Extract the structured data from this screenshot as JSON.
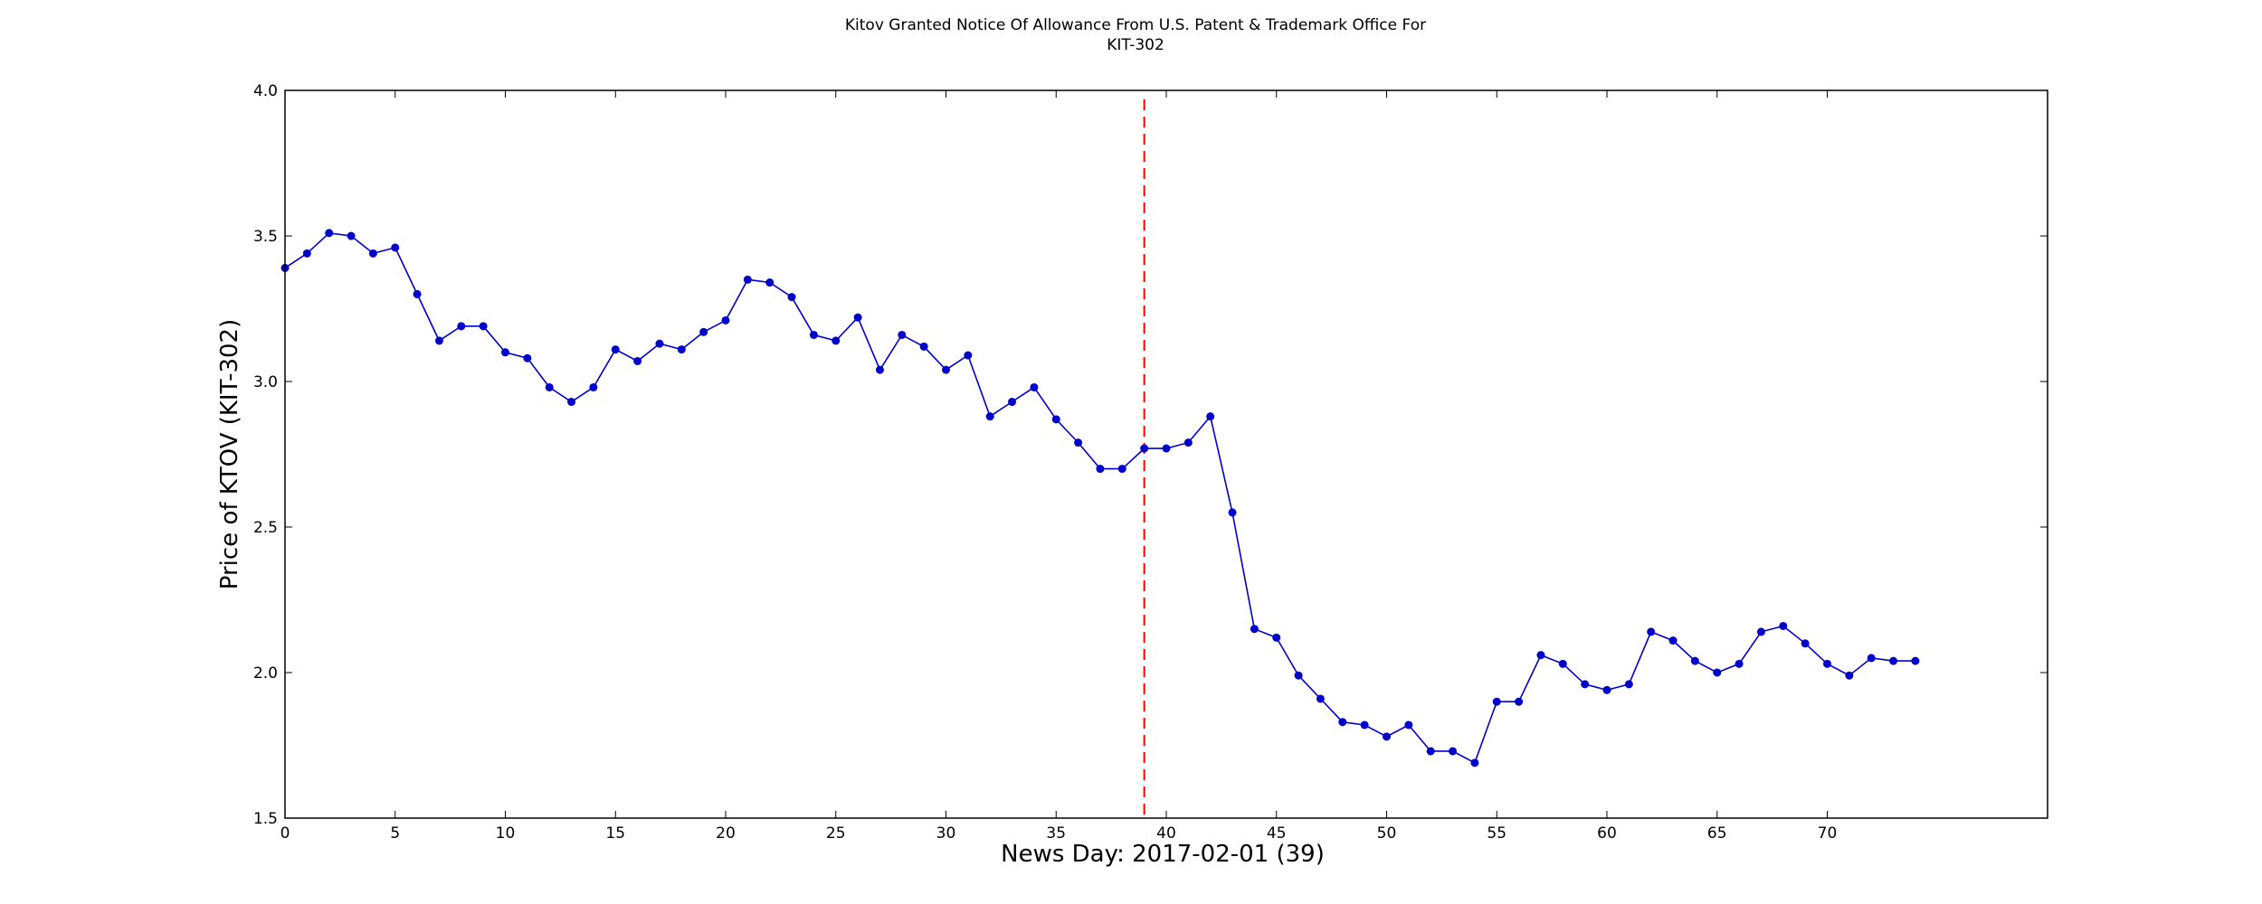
{
  "chart_data": {
    "type": "line",
    "title_lines": [
      "Kitov Granted Notice Of Allowance From U.S. Patent & Trademark Office For",
      "KIT-302"
    ],
    "xlabel": "News Day: 2017-02-01 (39)",
    "ylabel": "Price of KTOV (KIT-302)",
    "xlim": [
      0,
      80
    ],
    "ylim": [
      1.5,
      4.0
    ],
    "xticks": [
      0,
      5,
      10,
      15,
      20,
      25,
      30,
      35,
      40,
      45,
      50,
      55,
      60,
      65,
      70
    ],
    "xtick_labels": [
      "0",
      "5",
      "10",
      "15",
      "20",
      "25",
      "30",
      "35",
      "40",
      "45",
      "50",
      "55",
      "60",
      "65",
      "70"
    ],
    "yticks": [
      1.5,
      2.0,
      2.5,
      3.0,
      3.5,
      4.0
    ],
    "ytick_labels": [
      "1.5",
      "2.0",
      "2.5",
      "3.0",
      "3.5",
      "4.0"
    ],
    "grid": false,
    "event_line": {
      "x": 39,
      "color": "#ff0000",
      "style": "dashed"
    },
    "series": [
      {
        "color": "#0000cc",
        "x": [
          0,
          1,
          2,
          3,
          4,
          5,
          6,
          7,
          8,
          9,
          10,
          11,
          12,
          13,
          14,
          15,
          16,
          17,
          18,
          19,
          20,
          21,
          22,
          23,
          24,
          25,
          26,
          27,
          28,
          29,
          30,
          31,
          32,
          33,
          34,
          35,
          36,
          37,
          38,
          39,
          40,
          41,
          42,
          43,
          44,
          45,
          46,
          47,
          48,
          49,
          50,
          51,
          52,
          53,
          54,
          55,
          56,
          57,
          58,
          59,
          60,
          61,
          62,
          63,
          64,
          65,
          66,
          67,
          68,
          69,
          70,
          71,
          72,
          73,
          74
        ],
        "y": [
          3.39,
          3.44,
          3.51,
          3.5,
          3.44,
          3.46,
          3.3,
          3.14,
          3.19,
          3.19,
          3.1,
          3.08,
          2.98,
          2.93,
          2.98,
          3.11,
          3.07,
          3.13,
          3.11,
          3.17,
          3.21,
          3.35,
          3.34,
          3.29,
          3.16,
          3.14,
          3.22,
          3.04,
          3.16,
          3.12,
          3.04,
          3.09,
          2.88,
          2.93,
          2.98,
          2.87,
          2.79,
          2.7,
          2.7,
          2.77,
          2.77,
          2.79,
          2.88,
          2.55,
          2.15,
          2.12,
          1.99,
          1.91,
          1.83,
          1.82,
          1.78,
          1.82,
          1.73,
          1.73,
          1.69,
          1.9,
          1.9,
          2.06,
          2.03,
          1.96,
          1.94,
          1.96,
          2.14,
          2.11,
          2.04,
          2.0,
          2.03,
          2.14,
          2.16,
          2.1,
          2.03,
          1.99,
          2.05,
          2.04,
          2.04
        ]
      }
    ]
  }
}
